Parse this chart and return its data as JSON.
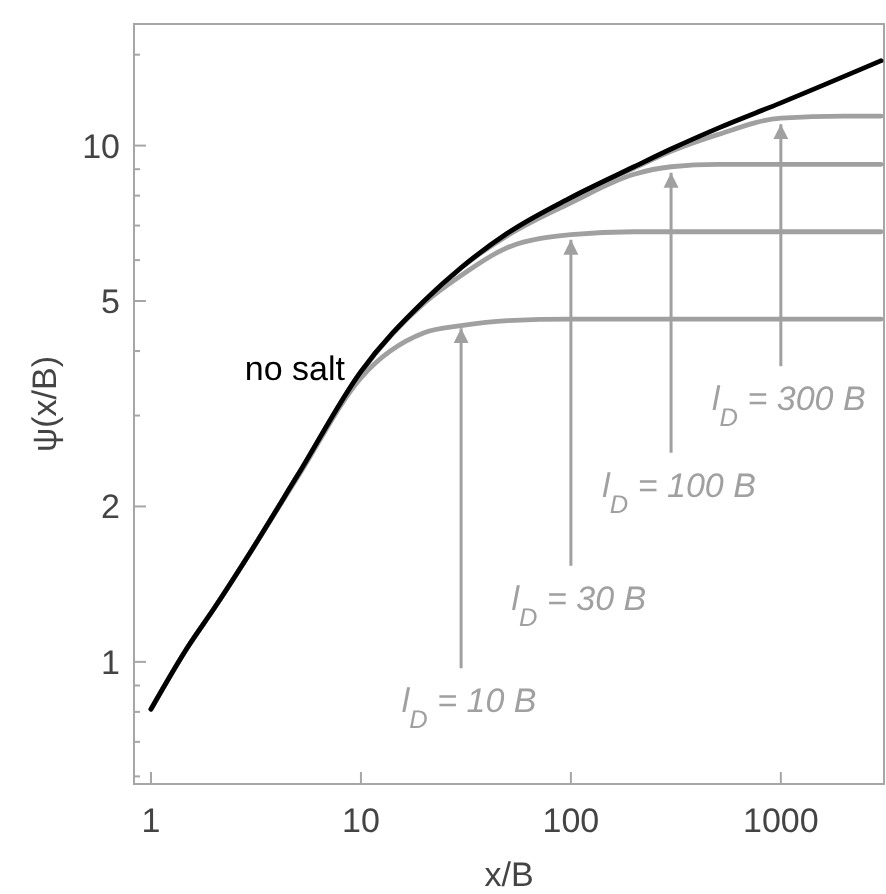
{
  "chart_data": {
    "type": "line",
    "xlabel": "x/B",
    "ylabel": "ψ(x/B)",
    "log": "xy",
    "x": [
      1,
      1.5,
      2,
      3,
      5,
      10,
      20,
      30,
      50,
      100,
      200,
      300,
      500,
      1000,
      3000
    ],
    "series": [
      {
        "name": "no salt",
        "color": "#000000",
        "values": [
          0.81,
          1.07,
          1.27,
          1.64,
          2.3,
          3.65,
          5.0,
          5.8,
          6.77,
          7.93,
          9.1,
          9.85,
          10.8,
          12.1,
          14.6
        ]
      },
      {
        "color": "#a0a0a0",
        "x": [
          1,
          1.5,
          2,
          3,
          5,
          10,
          20,
          30,
          50,
          100,
          300,
          1000,
          3000
        ],
        "values": [
          0.81,
          1.07,
          1.27,
          1.64,
          2.28,
          3.55,
          4.34,
          4.48,
          4.58,
          4.61,
          4.61,
          4.61,
          4.61
        ]
      },
      {
        "color": "#a0a0a0",
        "x": [
          1,
          1.5,
          2,
          3,
          5,
          10,
          20,
          30,
          50,
          100,
          200,
          300,
          1000,
          3000
        ],
        "values": [
          0.81,
          1.07,
          1.27,
          1.64,
          2.3,
          3.64,
          4.95,
          5.6,
          6.35,
          6.72,
          6.81,
          6.81,
          6.81,
          6.81
        ]
      },
      {
        "color": "#a0a0a0",
        "x": [
          1,
          1.5,
          2,
          3,
          5,
          10,
          20,
          30,
          50,
          100,
          200,
          300,
          500,
          1000,
          3000
        ],
        "values": [
          0.81,
          1.07,
          1.27,
          1.64,
          2.3,
          3.65,
          5.0,
          5.8,
          6.7,
          7.75,
          8.8,
          9.1,
          9.2,
          9.2,
          9.2
        ]
      },
      {
        "color": "#a0a0a0",
        "x": [
          1,
          1.5,
          2,
          3,
          5,
          10,
          20,
          30,
          50,
          100,
          200,
          300,
          500,
          1000,
          2000,
          3000
        ],
        "values": [
          0.81,
          1.07,
          1.27,
          1.64,
          2.3,
          3.65,
          5.0,
          5.8,
          6.77,
          7.93,
          9.05,
          9.75,
          10.5,
          11.3,
          11.4,
          11.4
        ]
      }
    ],
    "annotations": [
      {
        "text": "l$_{D}$ = 10 B",
        "x": 30,
        "y": 4.55
      },
      {
        "text": "l$_{D}$ = 30 B",
        "x": 100,
        "y": 6.75
      },
      {
        "text": "l$_{D}$ = 100 B",
        "x": 300,
        "y": 9.1
      },
      {
        "text": "l$_{D}$ = 300 B",
        "x": 1000,
        "y": 11.3
      }
    ],
    "xlim": [
      0.83,
      3100
    ],
    "ylim": [
      0.58,
      17.2
    ],
    "xticks": [
      1,
      10,
      100,
      1000
    ],
    "yticks": [
      {
        "value": 0.6,
        "label": null
      },
      {
        "value": 0.7,
        "label": null
      },
      {
        "value": 0.8,
        "label": null
      },
      {
        "value": 0.9,
        "label": null
      },
      1,
      2,
      {
        "value": 3,
        "label": null
      },
      {
        "value": 4,
        "label": null
      },
      5,
      {
        "value": 6,
        "label": null
      },
      {
        "value": 7,
        "label": null
      },
      {
        "value": 8,
        "label": null
      },
      {
        "value": 9,
        "label": null
      },
      10,
      {
        "value": 15,
        "label": null
      }
    ],
    "grid": false,
    "legend": false,
    "marker": "none",
    "line_style": "solid"
  }
}
